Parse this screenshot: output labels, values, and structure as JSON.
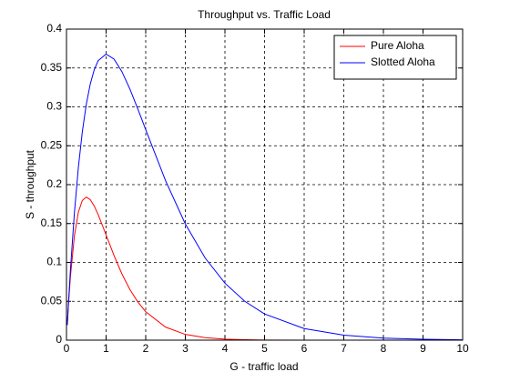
{
  "chart_data": {
    "type": "line",
    "title": "Throughput vs. Traffic Load",
    "x_label": "G - traffic load",
    "y_label": "S - throughput",
    "x": [
      0.02,
      0.05,
      0.1,
      0.2,
      0.3,
      0.4,
      0.5,
      0.6,
      0.7,
      0.8,
      1,
      1.2,
      1.4,
      1.6,
      1.8,
      2,
      2.5,
      3,
      3.5,
      4,
      4.5,
      5,
      6,
      7,
      8,
      9,
      10
    ],
    "series": [
      {
        "name": "Pure Aloha",
        "color": "#ff0000",
        "values": [
          0.0192,
          0.0452,
          0.0819,
          0.1341,
          0.1646,
          0.1797,
          0.1839,
          0.1807,
          0.1726,
          0.1615,
          0.1353,
          0.1089,
          0.0851,
          0.0652,
          0.0492,
          0.0366,
          0.0168,
          0.0074,
          0.0032,
          0.0013,
          0.0006,
          0.0002,
          0,
          0,
          0,
          0,
          0
        ]
      },
      {
        "name": "Slotted Aloha",
        "color": "#0000ff",
        "values": [
          0.0196,
          0.0476,
          0.0905,
          0.1637,
          0.2222,
          0.2681,
          0.3033,
          0.3293,
          0.3476,
          0.3595,
          0.3679,
          0.3614,
          0.3452,
          0.323,
          0.2975,
          0.2707,
          0.2052,
          0.1494,
          0.1057,
          0.0733,
          0.05,
          0.0337,
          0.0149,
          0.0064,
          0.0027,
          0.0011,
          0.0005
        ]
      }
    ],
    "xlim": [
      0,
      10
    ],
    "xticks": [
      0,
      1,
      2,
      3,
      4,
      5,
      6,
      7,
      8,
      9,
      10
    ],
    "ylim": [
      0,
      0.4
    ],
    "yticks": [
      0,
      0.05,
      0.1,
      0.15,
      0.2,
      0.25,
      0.3,
      0.35,
      0.4
    ],
    "grid": true,
    "legend": "top-right"
  }
}
